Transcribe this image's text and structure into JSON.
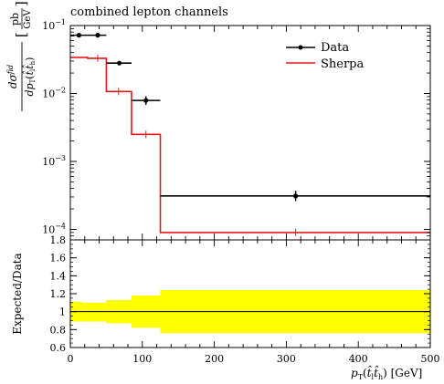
{
  "title": "combined lepton channels",
  "chart_data": [
    {
      "type": "line",
      "title": "combined lepton channels",
      "xlabel": "p_T(t̂_l t̂_h) [GeV]",
      "ylabel": "dσ^fid / dp_T(t̂_l t̂_h) [pb/GeV]",
      "yscale": "log",
      "xlim": [
        0,
        500
      ],
      "ylim": [
        7e-05,
        0.1
      ],
      "bin_edges": [
        0,
        50,
        85,
        125,
        500
      ],
      "legend_position": "top-right",
      "y_tick_labels": [
        "10^-4",
        "10^-3",
        "10^-2",
        "10^-1"
      ],
      "series": [
        {
          "name": "Data",
          "style": "points-with-errors",
          "color": "#000000",
          "points": [
            {
              "x": 12,
              "y": 0.072,
              "xlo": 0,
              "xhi": 24
            },
            {
              "x": 38,
              "y": 0.072,
              "xlo": 24,
              "xhi": 50
            },
            {
              "x": 68,
              "y": 0.028,
              "xlo": 50,
              "xhi": 85
            },
            {
              "x": 105,
              "y": 0.0079,
              "xlo": 85,
              "xhi": 125,
              "yerr": [
                0.0068,
                0.0091
              ]
            },
            {
              "x": 313,
              "y": 0.00031,
              "xlo": 125,
              "xhi": 500,
              "yerr": [
                0.00026,
                0.00037
              ]
            }
          ]
        },
        {
          "name": "Sherpa",
          "style": "histogram",
          "color": "#e41a1c",
          "bins": [
            {
              "xlo": 0,
              "xhi": 24,
              "y": 0.034
            },
            {
              "xlo": 24,
              "xhi": 50,
              "y": 0.033
            },
            {
              "xlo": 50,
              "xhi": 85,
              "y": 0.0107
            },
            {
              "xlo": 85,
              "xhi": 125,
              "y": 0.0025
            },
            {
              "xlo": 125,
              "xhi": 500,
              "y": 9e-05
            }
          ],
          "markers_x": [
            38,
            67,
            105,
            313
          ]
        }
      ]
    },
    {
      "type": "area",
      "ylabel": "Expected/Data",
      "xlabel": "p_T(t̂_l t̂_h) [GeV]",
      "xlim": [
        0,
        500
      ],
      "ylim": [
        0.6,
        1.8
      ],
      "x_ticks": [
        0,
        100,
        200,
        300,
        400,
        500
      ],
      "y_ticks": [
        0.6,
        0.8,
        1,
        1.2,
        1.4,
        1.6,
        1.8
      ],
      "reference_line": 1,
      "band_color": "#ffff00",
      "band": [
        {
          "xlo": 0,
          "xhi": 16,
          "lo": 0.89,
          "hi": 1.11
        },
        {
          "xlo": 16,
          "xhi": 50,
          "lo": 0.89,
          "hi": 1.1
        },
        {
          "xlo": 50,
          "xhi": 85,
          "lo": 0.87,
          "hi": 1.13
        },
        {
          "xlo": 85,
          "xhi": 125,
          "lo": 0.82,
          "hi": 1.18
        },
        {
          "xlo": 125,
          "xhi": 500,
          "lo": 0.76,
          "hi": 1.24
        }
      ]
    }
  ]
}
